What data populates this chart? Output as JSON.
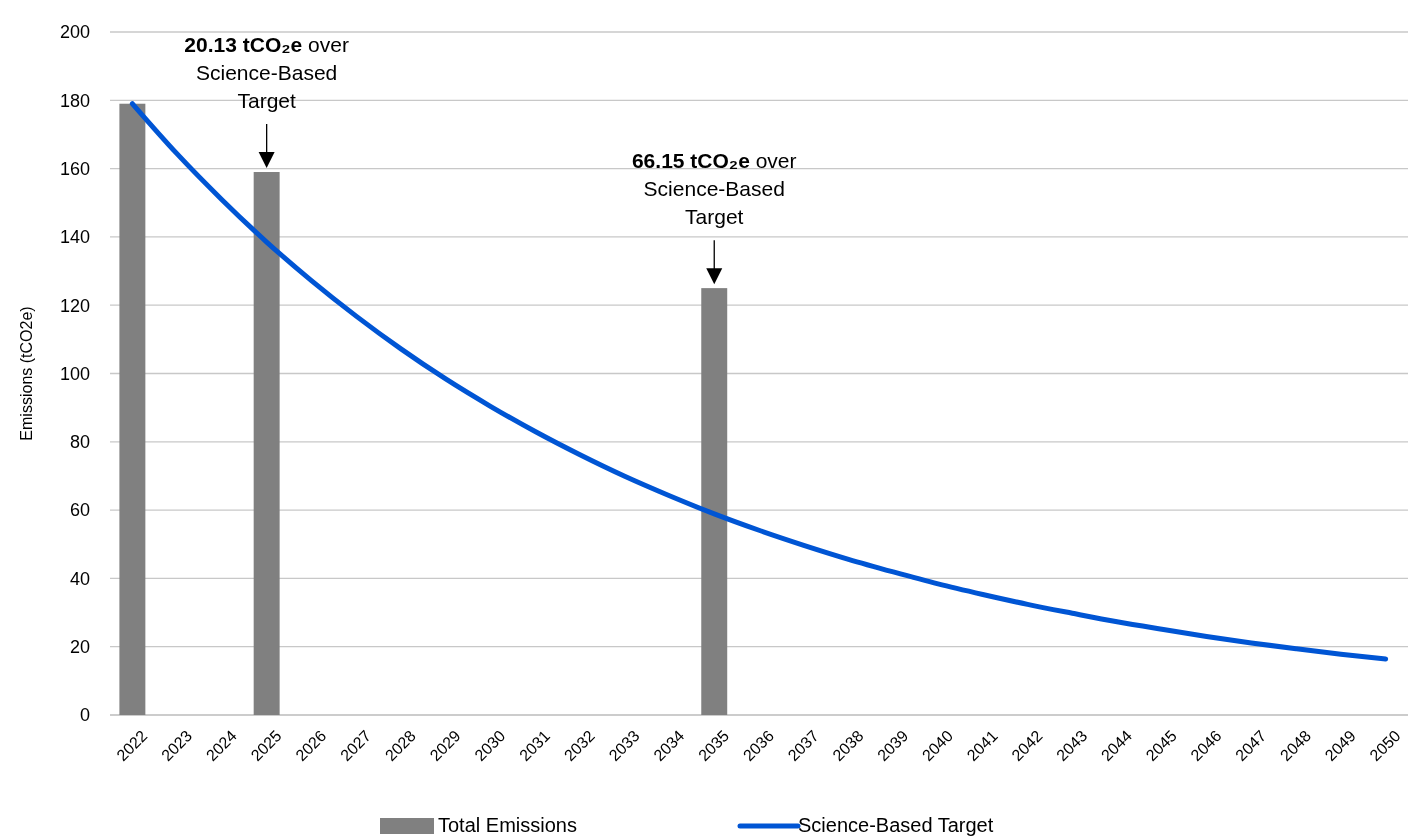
{
  "chart_data": {
    "type": "bar",
    "ylabel": "Emissions (tCO2e)",
    "categories": [
      "2022",
      "2023",
      "2024",
      "2025",
      "2026",
      "2027",
      "2028",
      "2029",
      "2030",
      "2031",
      "2032",
      "2033",
      "2034",
      "2035",
      "2036",
      "2037",
      "2038",
      "2039",
      "2040",
      "2041",
      "2042",
      "2043",
      "2044",
      "2045",
      "2046",
      "2047",
      "2048",
      "2049",
      "2050"
    ],
    "series": [
      {
        "name": "Total Emissions",
        "color": "#808080",
        "values": [
          179,
          null,
          null,
          159,
          null,
          null,
          null,
          null,
          null,
          null,
          null,
          null,
          null,
          125,
          null,
          null,
          null,
          null,
          null,
          null,
          null,
          null,
          null,
          null,
          null,
          null,
          null,
          null,
          null
        ]
      },
      {
        "name": "Science-Based Target",
        "type": "line",
        "color": "#0055d4",
        "values": [
          179,
          164.3,
          150.9,
          138.5,
          127.2,
          116.8,
          107.2,
          98.4,
          90.4,
          83,
          76.2,
          69.9,
          64.2,
          58.9,
          54.1,
          49.7,
          45.6,
          41.9,
          38.4,
          35.3,
          32.4,
          29.8,
          27.3,
          25.1,
          23,
          21.1,
          19.4,
          17.8,
          16.4
        ]
      }
    ],
    "ylim": [
      0,
      200
    ],
    "yticks": [
      0,
      20,
      40,
      60,
      80,
      100,
      120,
      140,
      160,
      180,
      200
    ],
    "grid": "y",
    "legend": "bottom",
    "marker": "none",
    "line_style": "solid",
    "annotations": [
      {
        "text": "20.13 tCO₂e over Science-Based Target",
        "x": "2025",
        "y": 159
      },
      {
        "text": "66.15 tCO₂e over Science-Based Target",
        "x": "2035",
        "y": 125
      }
    ]
  }
}
